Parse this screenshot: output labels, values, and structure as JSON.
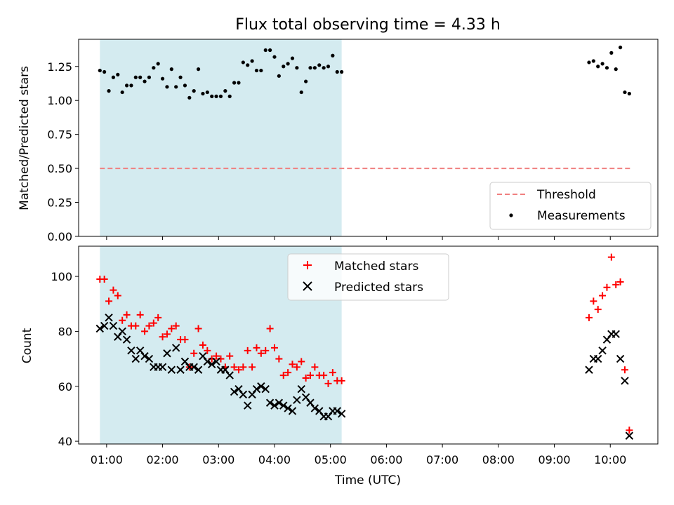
{
  "chart_data": [
    {
      "type": "scatter",
      "title": "Flux total observing time = 4.33 h",
      "xlabel": "",
      "ylabel": "Matched/Predicted stars",
      "ylim": [
        0,
        1.45
      ],
      "yticks": [
        0.0,
        0.25,
        0.5,
        0.75,
        1.0,
        1.25
      ],
      "ytick_labels": [
        "0.00",
        "0.25",
        "0.50",
        "0.75",
        "1.00",
        "1.25"
      ],
      "xlim": [
        0.5,
        10.85
      ],
      "shaded_interval": [
        0.88,
        5.2
      ],
      "shaded_color": "#d4ebf0",
      "legend": [
        "Threshold",
        "Measurements"
      ],
      "legend_location": "lower right",
      "series": [
        {
          "name": "Threshold",
          "style": "dashed-line",
          "color": "#f08080",
          "x": [
            0.88,
            10.38
          ],
          "y": [
            0.5,
            0.5
          ]
        },
        {
          "name": "Measurements",
          "style": "dot",
          "color": "#000000",
          "x": [
            0.88,
            0.96,
            1.04,
            1.12,
            1.2,
            1.28,
            1.36,
            1.44,
            1.52,
            1.6,
            1.68,
            1.76,
            1.84,
            1.92,
            2.0,
            2.08,
            2.16,
            2.24,
            2.32,
            2.4,
            2.48,
            2.56,
            2.64,
            2.72,
            2.8,
            2.88,
            2.96,
            3.04,
            3.12,
            3.2,
            3.28,
            3.36,
            3.44,
            3.52,
            3.6,
            3.68,
            3.76,
            3.84,
            3.92,
            4.0,
            4.08,
            4.16,
            4.24,
            4.32,
            4.4,
            4.48,
            4.56,
            4.64,
            4.72,
            4.8,
            4.88,
            4.96,
            5.04,
            5.12,
            5.2,
            9.62,
            9.7,
            9.78,
            9.86,
            9.94,
            10.02,
            10.1,
            10.18,
            10.26,
            10.34
          ],
          "y": [
            1.22,
            1.21,
            1.07,
            1.17,
            1.19,
            1.06,
            1.11,
            1.11,
            1.17,
            1.17,
            1.14,
            1.17,
            1.24,
            1.27,
            1.16,
            1.1,
            1.23,
            1.1,
            1.17,
            1.11,
            1.02,
            1.07,
            1.23,
            1.05,
            1.06,
            1.03,
            1.03,
            1.03,
            1.07,
            1.03,
            1.13,
            1.13,
            1.28,
            1.26,
            1.29,
            1.22,
            1.22,
            1.37,
            1.37,
            1.32,
            1.18,
            1.25,
            1.27,
            1.31,
            1.24,
            1.06,
            1.14,
            1.24,
            1.24,
            1.26,
            1.24,
            1.25,
            1.33,
            1.21,
            1.21,
            1.28,
            1.29,
            1.25,
            1.27,
            1.24,
            1.35,
            1.23,
            1.39,
            1.06,
            1.05
          ]
        }
      ]
    },
    {
      "type": "scatter",
      "title": "",
      "xlabel": "Time (UTC)",
      "ylabel": "Count",
      "ylim": [
        39,
        111
      ],
      "yticks": [
        40,
        60,
        80,
        100
      ],
      "ytick_labels": [
        "40",
        "60",
        "80",
        "100"
      ],
      "xlim": [
        0.5,
        10.85
      ],
      "xticks": [
        1,
        2,
        3,
        4,
        5,
        6,
        7,
        8,
        9,
        10
      ],
      "xtick_labels": [
        "01:00",
        "02:00",
        "03:00",
        "04:00",
        "05:00",
        "06:00",
        "07:00",
        "08:00",
        "09:00",
        "10:00"
      ],
      "shaded_interval": [
        0.88,
        5.2
      ],
      "shaded_color": "#d4ebf0",
      "legend": [
        "Matched stars",
        "Predicted stars"
      ],
      "legend_location": "upper center",
      "series": [
        {
          "name": "Matched stars",
          "style": "plus",
          "color": "#ff0000",
          "x": [
            0.88,
            0.96,
            1.04,
            1.12,
            1.2,
            1.28,
            1.36,
            1.44,
            1.52,
            1.6,
            1.68,
            1.76,
            1.84,
            1.92,
            2.0,
            2.08,
            2.16,
            2.24,
            2.32,
            2.4,
            2.48,
            2.56,
            2.64,
            2.72,
            2.8,
            2.88,
            2.96,
            3.04,
            3.12,
            3.2,
            3.28,
            3.36,
            3.44,
            3.52,
            3.6,
            3.68,
            3.76,
            3.84,
            3.92,
            4.0,
            4.08,
            4.16,
            4.24,
            4.32,
            4.4,
            4.48,
            4.56,
            4.64,
            4.72,
            4.8,
            4.88,
            4.96,
            5.04,
            5.12,
            5.2,
            9.62,
            9.7,
            9.78,
            9.86,
            9.94,
            10.02,
            10.1,
            10.18,
            10.26,
            10.34
          ],
          "y": [
            99,
            99,
            91,
            95,
            93,
            84,
            86,
            82,
            82,
            86,
            80,
            82,
            83,
            85,
            78,
            79,
            81,
            82,
            77,
            77,
            67,
            72,
            81,
            75,
            73,
            70,
            71,
            70,
            67,
            71,
            67,
            66,
            67,
            73,
            67,
            74,
            72,
            73,
            81,
            74,
            70,
            64,
            65,
            68,
            67,
            69,
            63,
            64,
            67,
            64,
            64,
            61,
            65,
            62,
            62,
            85,
            91,
            88,
            93,
            96,
            107,
            97,
            98,
            66,
            44
          ]
        },
        {
          "name": "Predicted stars",
          "style": "x",
          "color": "#000000",
          "x": [
            0.88,
            0.96,
            1.04,
            1.12,
            1.2,
            1.28,
            1.36,
            1.44,
            1.52,
            1.6,
            1.68,
            1.76,
            1.84,
            1.92,
            2.0,
            2.08,
            2.16,
            2.24,
            2.32,
            2.4,
            2.48,
            2.56,
            2.64,
            2.72,
            2.8,
            2.88,
            2.96,
            3.04,
            3.12,
            3.2,
            3.28,
            3.36,
            3.44,
            3.52,
            3.6,
            3.68,
            3.76,
            3.84,
            3.92,
            4.0,
            4.08,
            4.16,
            4.24,
            4.32,
            4.4,
            4.48,
            4.56,
            4.64,
            4.72,
            4.8,
            4.88,
            4.96,
            5.04,
            5.12,
            5.2,
            9.62,
            9.7,
            9.78,
            9.86,
            9.94,
            10.02,
            10.1,
            10.18,
            10.26,
            10.34
          ],
          "y": [
            81,
            82,
            85,
            82,
            78,
            80,
            77,
            73,
            70,
            73,
            71,
            70,
            67,
            67,
            67,
            72,
            66,
            74,
            66,
            69,
            67,
            67,
            66,
            71,
            69,
            68,
            69,
            66,
            66,
            64,
            58,
            59,
            57,
            53,
            57,
            59,
            60,
            59,
            54,
            53,
            54,
            53,
            52,
            51,
            55,
            59,
            56,
            54,
            52,
            51,
            49,
            49,
            51,
            51,
            50,
            66,
            70,
            70,
            73,
            77,
            79,
            79,
            70,
            62,
            42
          ]
        }
      ]
    }
  ]
}
